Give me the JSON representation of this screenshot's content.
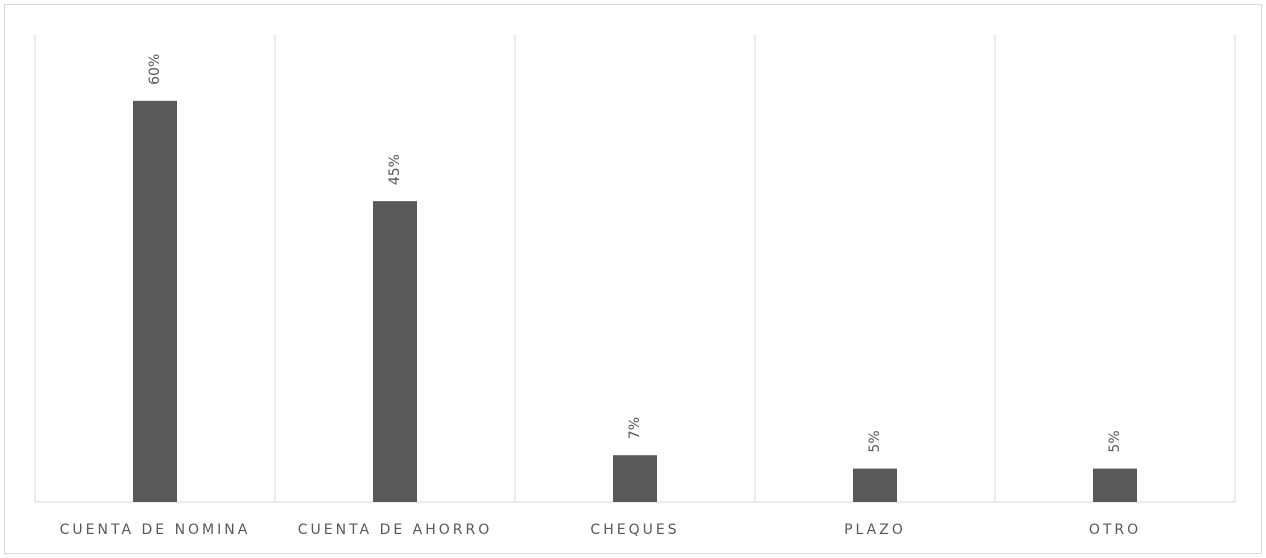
{
  "chart_data": {
    "type": "bar",
    "categories": [
      "CUENTA DE NOMINA",
      "CUENTA DE AHORRO",
      "CHEQUES",
      "PLAZO",
      "OTRO"
    ],
    "values": [
      60,
      45,
      7,
      5,
      5
    ],
    "value_labels": [
      "60%",
      "45%",
      "7%",
      "5%",
      "5%"
    ],
    "color": "#595959",
    "ylim": [
      0,
      70
    ]
  }
}
